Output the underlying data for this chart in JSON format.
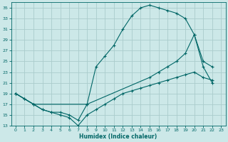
{
  "xlabel": "Humidex (Indice chaleur)",
  "bg_color": "#cce8e8",
  "grid_color": "#aacccc",
  "line_color": "#006666",
  "ylim": [
    13,
    36
  ],
  "yticks": [
    13,
    15,
    17,
    19,
    21,
    23,
    25,
    27,
    29,
    31,
    33,
    35
  ],
  "xlim": [
    -0.5,
    23.5
  ],
  "xticks": [
    0,
    1,
    2,
    3,
    4,
    5,
    6,
    7,
    8,
    9,
    10,
    11,
    12,
    13,
    14,
    15,
    16,
    17,
    18,
    19,
    20,
    21,
    22,
    23
  ],
  "line1_x": [
    0,
    1,
    2,
    8,
    9,
    10,
    11,
    12,
    13,
    14,
    15,
    16,
    17,
    18,
    19,
    20,
    21,
    22
  ],
  "line1_y": [
    19,
    18,
    17,
    17,
    24,
    26,
    28,
    31,
    33.5,
    35,
    35.5,
    35,
    34.5,
    34,
    33,
    30,
    24,
    21
  ],
  "line2_x": [
    0,
    2,
    3,
    4,
    5,
    6,
    7,
    8,
    15,
    16,
    17,
    18,
    19,
    20,
    21,
    22
  ],
  "line2_y": [
    19,
    17,
    16,
    15.5,
    15.5,
    15,
    14,
    17,
    22,
    23,
    24,
    25,
    26.5,
    30,
    25,
    24
  ],
  "line3_x": [
    0,
    1,
    2,
    3,
    4,
    5,
    6,
    7,
    8,
    9,
    10,
    11,
    12,
    13,
    14,
    15,
    16,
    17,
    18,
    19,
    20,
    21,
    22
  ],
  "line3_y": [
    19,
    18,
    17,
    16,
    15.5,
    15,
    14.5,
    13,
    15,
    16,
    17,
    18,
    19,
    19.5,
    20,
    20.5,
    21,
    21.5,
    22,
    22.5,
    23,
    22,
    21.5
  ]
}
